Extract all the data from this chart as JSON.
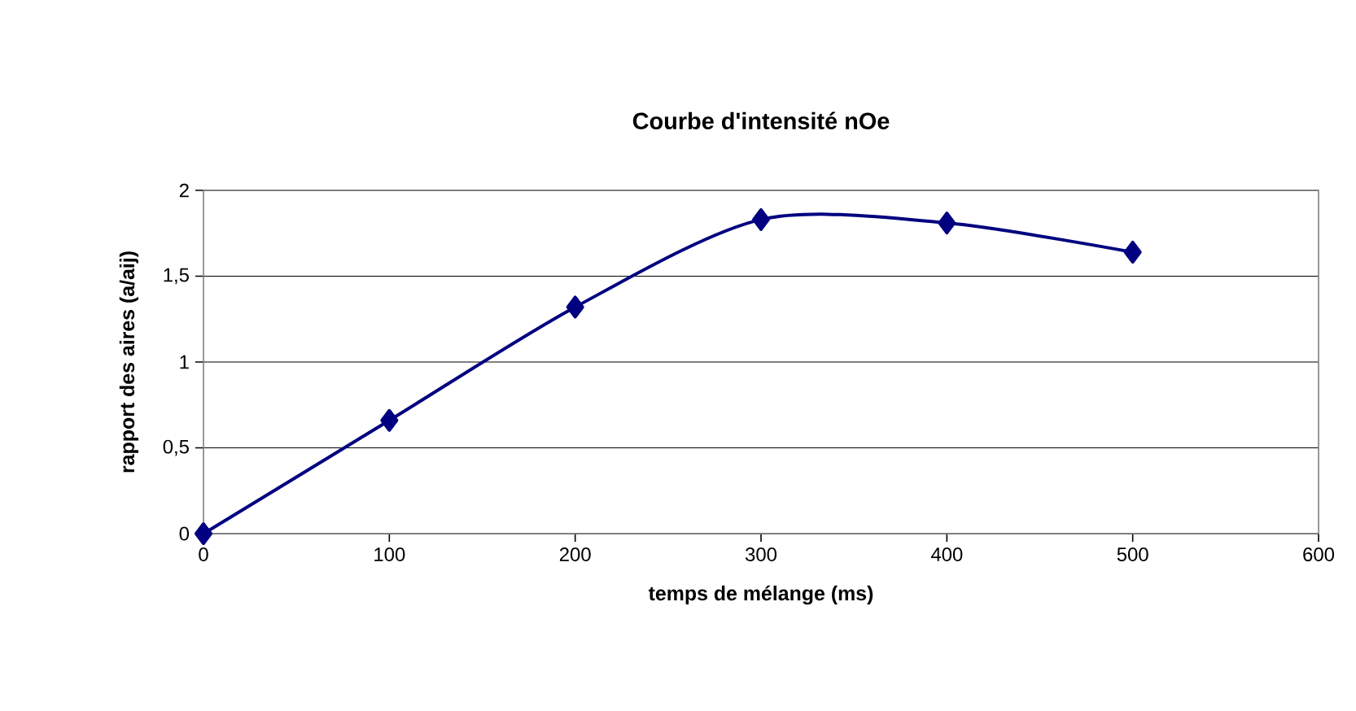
{
  "chart_data": {
    "type": "line",
    "title": "Courbe d'intensité nOe",
    "xlabel": "temps de mélange (ms)",
    "ylabel": "rapport des aires (a/aij)",
    "x": [
      0,
      100,
      200,
      300,
      400,
      500
    ],
    "series": [
      {
        "color": "#000080",
        "values": [
          0,
          0.66,
          1.32,
          1.83,
          1.81,
          1.64
        ]
      }
    ],
    "xlim": [
      0,
      600
    ],
    "xticks": [
      0,
      100,
      200,
      300,
      400,
      500,
      600
    ],
    "ylim": [
      0,
      2
    ],
    "yticks": [
      0,
      {
        "value": 0.5,
        "label": "0,5"
      },
      1,
      {
        "value": 1.5,
        "label": "1,5"
      },
      2
    ],
    "grid": "y",
    "marker": "diamond",
    "line_style": "solid"
  }
}
